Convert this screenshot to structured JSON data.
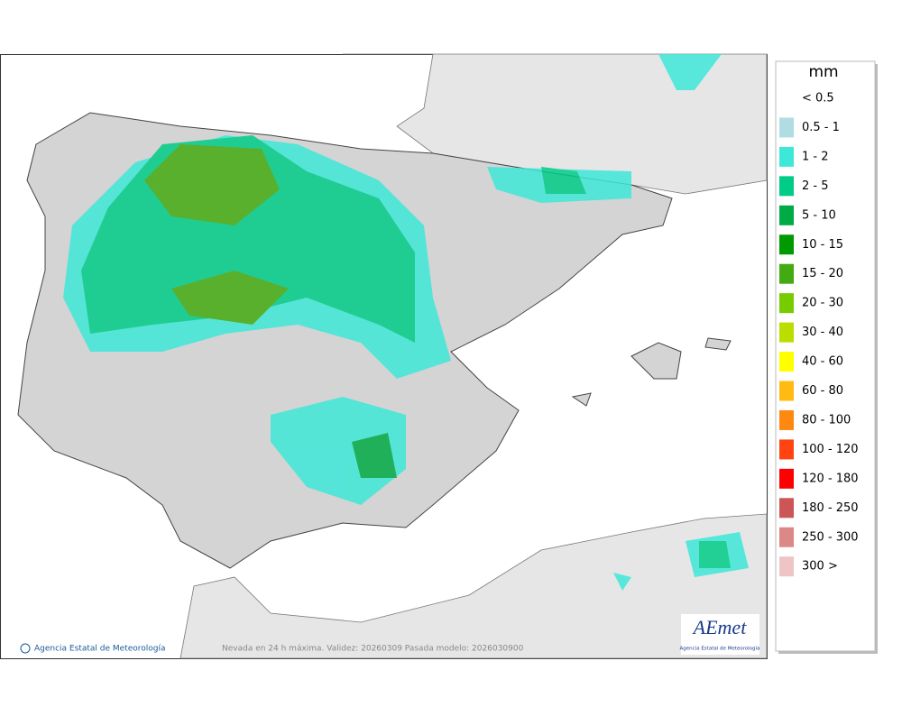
{
  "map": {
    "caption": "Nevada en 24 h máxima. Validez: 20260309 Pasada modelo: 2026030900",
    "credit": "Agencia Estatal de Meteorología",
    "logo": {
      "name": "AEmet",
      "subtitle": "Agencia Estatal de Meteorología"
    },
    "legend": {
      "unit": "mm",
      "items": [
        {
          "label": "< 0.5",
          "color": "#ffffff"
        },
        {
          "label": "0.5 - 1",
          "color": "#b0dde3"
        },
        {
          "label": "1 - 2",
          "color": "#3ee8d8"
        },
        {
          "label": "2 - 5",
          "color": "#00cc88"
        },
        {
          "label": "5 - 10",
          "color": "#00aa44"
        },
        {
          "label": "10 - 15",
          "color": "#009900"
        },
        {
          "label": "15 - 20",
          "color": "#44aa11"
        },
        {
          "label": "20 - 30",
          "color": "#77cc00"
        },
        {
          "label": "30 - 40",
          "color": "#bbdd00"
        },
        {
          "label": "40 - 60",
          "color": "#ffff00"
        },
        {
          "label": "60 - 80",
          "color": "#ffbb11"
        },
        {
          "label": "80 - 100",
          "color": "#ff8811"
        },
        {
          "label": "100 - 120",
          "color": "#ff4411"
        },
        {
          "label": "120 - 180",
          "color": "#ff0000"
        },
        {
          "label": "180 - 250",
          "color": "#cc5555"
        },
        {
          "label": "250 - 300",
          "color": "#dd8888"
        },
        {
          "label": "300 >",
          "color": "#eec4c4"
        }
      ]
    }
  }
}
